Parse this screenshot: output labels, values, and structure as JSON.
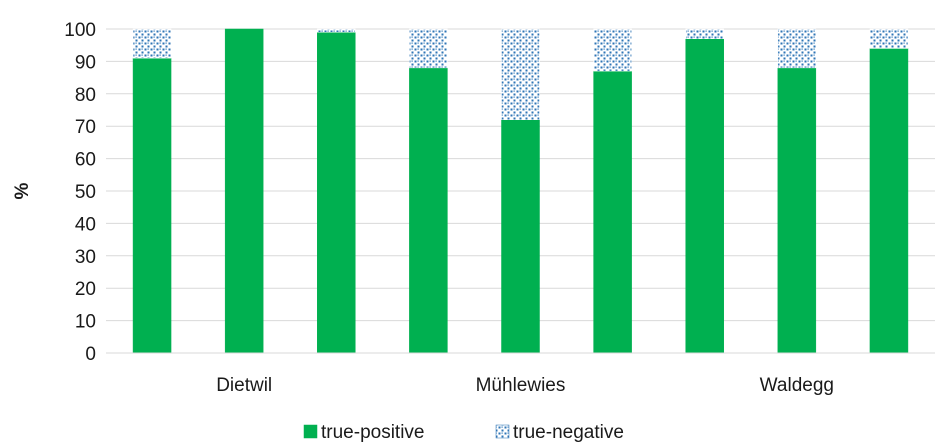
{
  "chart_data": {
    "type": "bar",
    "stacked": true,
    "ylabel": "%",
    "ylim": [
      0,
      100
    ],
    "yticks": [
      0,
      10,
      20,
      30,
      40,
      50,
      60,
      70,
      80,
      90,
      100
    ],
    "grid": true,
    "legend_position": "bottom",
    "groups": [
      "Dietwil",
      "Mühlewies",
      "Waldegg"
    ],
    "bars_per_group": 3,
    "series": [
      {
        "name": "true-positive",
        "color": "#00b050",
        "pattern": "solid",
        "values": [
          91,
          100,
          99,
          88,
          72,
          87,
          97,
          88,
          94
        ]
      },
      {
        "name": "true-negative",
        "color": "#2e75b6",
        "pattern": "dotted",
        "values": [
          9,
          0,
          1,
          12,
          28,
          13,
          3,
          12,
          6
        ]
      }
    ]
  }
}
